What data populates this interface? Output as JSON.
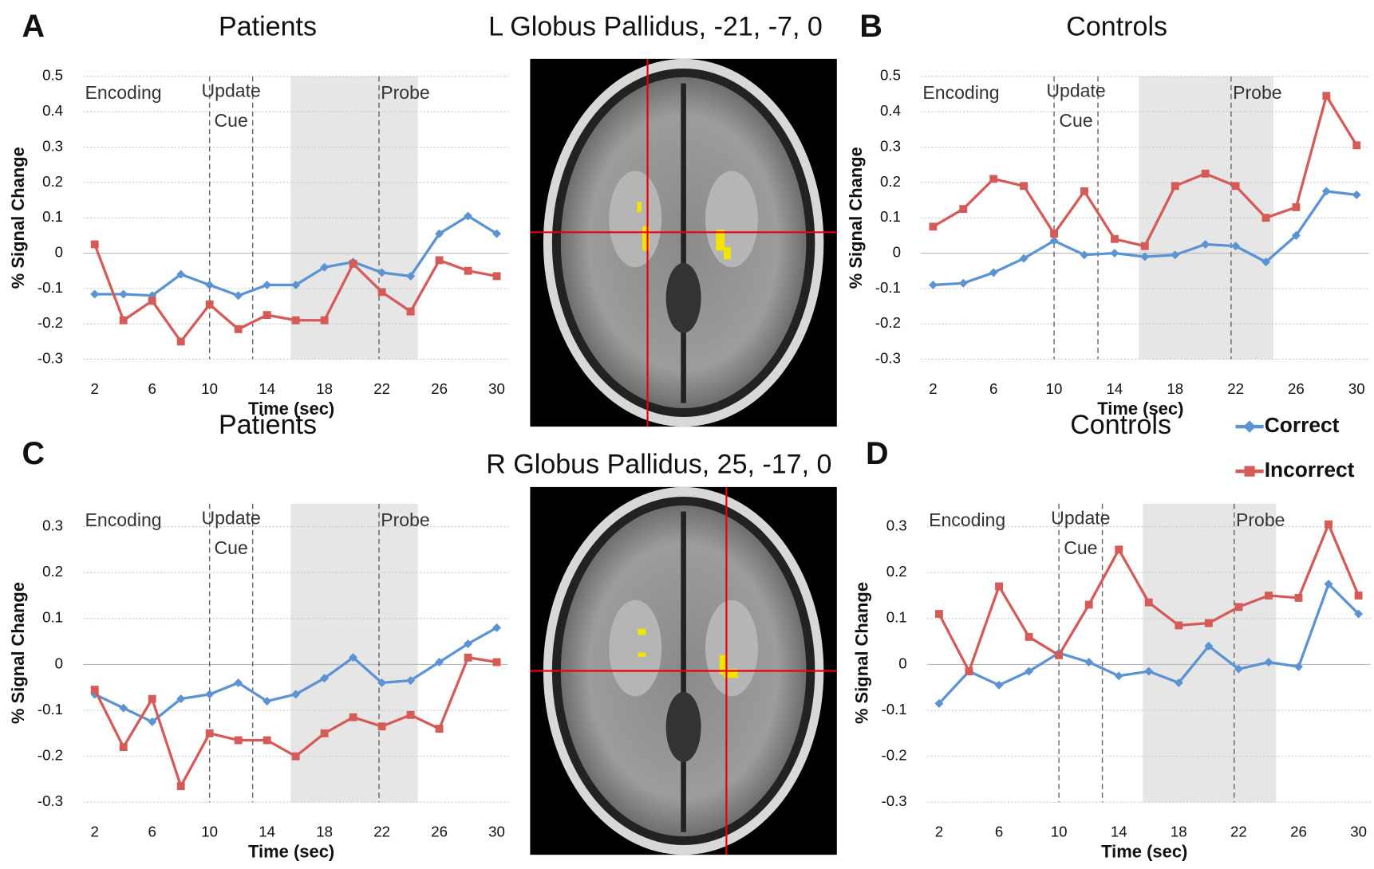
{
  "chart_data": [
    {
      "type": "line",
      "panel": "A",
      "title": "Patients",
      "xlabel": "Time (sec)",
      "ylabel": "% Signal Change",
      "x": [
        2,
        4,
        6,
        8,
        10,
        12,
        14,
        16,
        18,
        20,
        22,
        24,
        26,
        28,
        30
      ],
      "xlim": [
        1.2,
        30.8
      ],
      "xticks": [
        2,
        6,
        10,
        14,
        18,
        22,
        26,
        30
      ],
      "ylim": [
        -0.3,
        0.5
      ],
      "yticks": [
        -0.3,
        -0.2,
        -0.1,
        0,
        0.1,
        0.2,
        0.3,
        0.4,
        0.5
      ],
      "grid": true,
      "vlines": [
        10,
        13,
        21.8
      ],
      "shade": [
        15.65,
        24.5
      ],
      "annotations": [
        "Encoding",
        "Update",
        "Cue",
        "Probe"
      ],
      "series": [
        {
          "name": "Correct",
          "color": "#5b93d3",
          "marker": "diamond",
          "values": [
            -0.116,
            -0.116,
            -0.12,
            -0.06,
            -0.09,
            -0.12,
            -0.09,
            -0.09,
            -0.04,
            -0.025,
            -0.055,
            -0.065,
            0.055,
            0.105,
            0.055
          ]
        },
        {
          "name": "Incorrect",
          "color": "#d45b57",
          "marker": "square",
          "values": [
            0.025,
            -0.19,
            -0.135,
            -0.25,
            -0.145,
            -0.215,
            -0.175,
            -0.19,
            -0.19,
            -0.03,
            -0.11,
            -0.165,
            -0.02,
            -0.05,
            -0.065
          ]
        }
      ]
    },
    {
      "type": "line",
      "panel": "B",
      "title": "Controls",
      "xlabel": "Time (sec)",
      "ylabel": "% Signal Change",
      "x": [
        2,
        4,
        6,
        8,
        10,
        12,
        14,
        16,
        18,
        20,
        22,
        24,
        26,
        28,
        30
      ],
      "xlim": [
        1.2,
        30.8
      ],
      "xticks": [
        2,
        6,
        10,
        14,
        18,
        22,
        26,
        30
      ],
      "ylim": [
        -0.3,
        0.5
      ],
      "yticks": [
        -0.3,
        -0.2,
        -0.1,
        0,
        0.1,
        0.2,
        0.3,
        0.4,
        0.5
      ],
      "grid": true,
      "legend": "right",
      "vlines": [
        10,
        12.9,
        21.7
      ],
      "shade": [
        15.6,
        24.5
      ],
      "annotations": [
        "Encoding",
        "Update",
        "Cue",
        "Probe"
      ],
      "series": [
        {
          "name": "Correct",
          "color": "#5b93d3",
          "marker": "diamond",
          "values": [
            -0.09,
            -0.085,
            -0.055,
            -0.015,
            0.035,
            -0.005,
            0,
            -0.01,
            -0.005,
            0.025,
            0.02,
            -0.025,
            0.05,
            0.175,
            0.165
          ]
        },
        {
          "name": "Incorrect",
          "color": "#d45b57",
          "marker": "square",
          "values": [
            0.075,
            0.125,
            0.21,
            0.19,
            0.055,
            0.175,
            0.04,
            0.02,
            0.19,
            0.225,
            0.19,
            0.1,
            0.13,
            0.445,
            0.305
          ]
        }
      ]
    },
    {
      "type": "line",
      "panel": "C",
      "title": "Patients",
      "xlabel": "Time (sec)",
      "ylabel": "% Signal Change",
      "x": [
        2,
        4,
        6,
        8,
        10,
        12,
        14,
        16,
        18,
        20,
        22,
        24,
        26,
        28,
        30
      ],
      "xlim": [
        1.2,
        30.8
      ],
      "xticks": [
        2,
        6,
        10,
        14,
        18,
        22,
        26,
        30
      ],
      "ylim": [
        -0.3,
        0.35
      ],
      "yticks": [
        -0.3,
        -0.2,
        -0.1,
        0,
        0.1,
        0.2,
        0.3
      ],
      "grid": true,
      "vlines": [
        10,
        13,
        21.8
      ],
      "shade": [
        15.65,
        24.5
      ],
      "annotations": [
        "Encoding",
        "Update",
        "Cue",
        "Probe"
      ],
      "series": [
        {
          "name": "Correct",
          "color": "#5b93d3",
          "marker": "diamond",
          "values": [
            -0.065,
            -0.095,
            -0.125,
            -0.075,
            -0.065,
            -0.04,
            -0.08,
            -0.065,
            -0.03,
            0.015,
            -0.04,
            -0.035,
            0.005,
            0.045,
            0.08
          ]
        },
        {
          "name": "Incorrect",
          "color": "#d45b57",
          "marker": "square",
          "values": [
            -0.055,
            -0.18,
            -0.075,
            -0.265,
            -0.15,
            -0.165,
            -0.165,
            -0.2,
            -0.15,
            -0.115,
            -0.135,
            -0.11,
            -0.14,
            0.015,
            0.005
          ]
        }
      ]
    },
    {
      "type": "line",
      "panel": "D",
      "title": "Controls",
      "xlabel": "Time (sec)",
      "ylabel": "% Signal Change",
      "x": [
        2,
        4,
        6,
        8,
        10,
        12,
        14,
        16,
        18,
        20,
        22,
        24,
        26,
        28,
        30
      ],
      "xlim": [
        1.2,
        30.8
      ],
      "xticks": [
        2,
        6,
        10,
        14,
        18,
        22,
        26,
        30
      ],
      "ylim": [
        -0.3,
        0.35
      ],
      "yticks": [
        -0.3,
        -0.2,
        -0.1,
        0,
        0.1,
        0.2,
        0.3
      ],
      "grid": true,
      "vlines": [
        10,
        12.9,
        21.7
      ],
      "shade": [
        15.6,
        24.5
      ],
      "annotations": [
        "Encoding",
        "Update",
        "Cue",
        "Probe"
      ],
      "series": [
        {
          "name": "Correct",
          "color": "#5b93d3",
          "marker": "diamond",
          "values": [
            -0.085,
            -0.015,
            -0.045,
            -0.015,
            0.025,
            0.005,
            -0.025,
            -0.015,
            -0.04,
            0.04,
            -0.01,
            0.005,
            -0.005,
            0.175,
            0.11
          ]
        },
        {
          "name": "Incorrect",
          "color": "#d45b57",
          "marker": "square",
          "values": [
            0.11,
            -0.015,
            0.17,
            0.06,
            0.02,
            0.13,
            0.25,
            0.135,
            0.085,
            0.09,
            0.125,
            0.15,
            0.145,
            0.305,
            0.15
          ]
        }
      ]
    }
  ],
  "images": [
    {
      "heading": "L Globus Pallidus, -21, -7, 0"
    },
    {
      "heading": "R Globus Pallidus, 25, -17, 0"
    }
  ]
}
